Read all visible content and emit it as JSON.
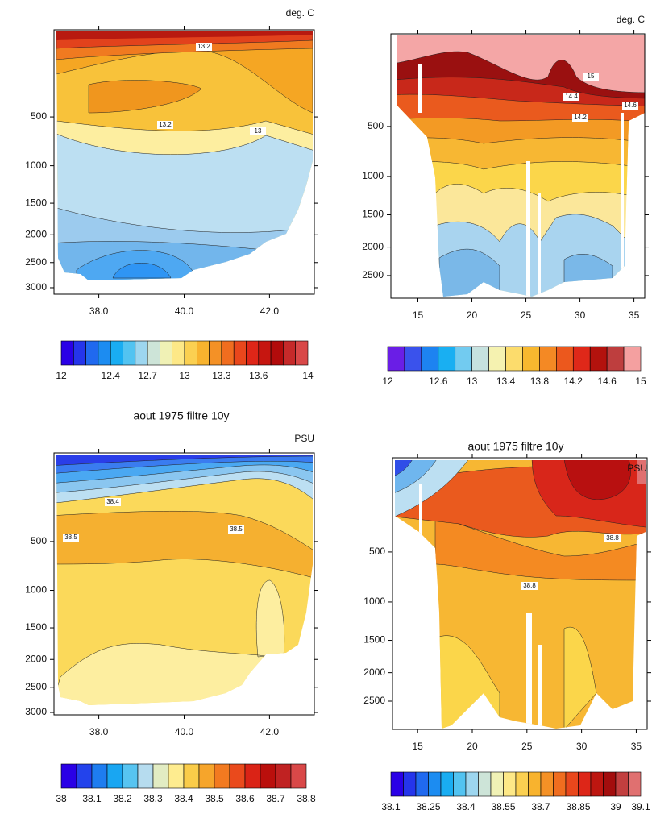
{
  "chart_data": [
    {
      "type": "contour",
      "unit": "deg. C",
      "xlim": [
        36.95,
        43.05
      ],
      "xticks": [
        {
          "value": 38,
          "label": "38.0"
        },
        {
          "value": 40,
          "label": "40.0"
        },
        {
          "value": 42,
          "label": "42.0"
        }
      ],
      "yscale": "sqrt",
      "ylim": [
        34,
        3136
      ],
      "yticks": [
        500,
        1000,
        1500,
        2000,
        2500,
        3000
      ],
      "contour_labels": [
        "13.2",
        "13.2",
        "13"
      ],
      "colorbar": {
        "levels": [
          12,
          12.1,
          12.2,
          12.3,
          12.4,
          12.5,
          12.6,
          12.7,
          12.8,
          12.9,
          13,
          13.1,
          13.2,
          13.3,
          13.4,
          13.5,
          13.6,
          13.7,
          13.8,
          13.9,
          14
        ],
        "labels": [
          12,
          12.4,
          12.7,
          13,
          13.3,
          13.6,
          14
        ],
        "colormap": [
          "#2a00e6",
          "#1f6ff0",
          "#18b4f2",
          "#b6dcef",
          "#fff6a6",
          "#f9c232",
          "#f27a20",
          "#e42a1a",
          "#b00808",
          "#d94848"
        ]
      }
    },
    {
      "type": "contour",
      "unit": "deg. C",
      "xlim": [
        12.5,
        36
      ],
      "xticks": [
        15,
        20,
        25,
        30,
        35
      ],
      "yscale": "sqrt",
      "ylim": [
        27,
        2937
      ],
      "yticks": [
        500,
        1000,
        1500,
        2000,
        2500
      ],
      "contour_labels": [
        "15",
        "14.4",
        "14.2",
        "14.6"
      ],
      "colorbar": {
        "levels": [
          12,
          12.2,
          12.4,
          12.6,
          12.8,
          13,
          13.2,
          13.4,
          13.6,
          13.8,
          14,
          14.2,
          14.4,
          14.6,
          14.8,
          15
        ],
        "labels": [
          12,
          12.6,
          13,
          13.4,
          13.8,
          14.2,
          14.6,
          15
        ],
        "colormap": [
          "#6a1ee6",
          "#1f6ff0",
          "#18b4f2",
          "#b6dcef",
          "#fff6a6",
          "#f9c232",
          "#f27a20",
          "#e42a1a",
          "#a00808",
          "#f4a0a0"
        ]
      }
    },
    {
      "type": "contour",
      "title": "aout 1975 filtre 10y",
      "unit": "PSU",
      "xlim": [
        36.95,
        43.05
      ],
      "xticks": [
        {
          "value": 38,
          "label": "38.0"
        },
        {
          "value": 40,
          "label": "40.0"
        },
        {
          "value": 42,
          "label": "42.0"
        }
      ],
      "yscale": "sqrt",
      "ylim": [
        31,
        3050
      ],
      "yticks": [
        500,
        1000,
        1500,
        2000,
        2500,
        3000
      ],
      "contour_labels": [
        "38.4",
        "38.5",
        "38.5"
      ],
      "colorbar": {
        "levels": [
          38,
          38.05,
          38.1,
          38.15,
          38.2,
          38.25,
          38.3,
          38.35,
          38.4,
          38.45,
          38.5,
          38.55,
          38.6,
          38.65,
          38.7,
          38.75,
          38.8
        ],
        "labels": [
          38,
          38.1,
          38.2,
          38.3,
          38.4,
          38.5,
          38.6,
          38.7,
          38.8
        ],
        "colormap": [
          "#2a00e6",
          "#1f6ff0",
          "#18b4f2",
          "#b6dcef",
          "#fff6a6",
          "#f9c232",
          "#f27a20",
          "#e42a1a",
          "#b00808",
          "#d94848"
        ]
      }
    },
    {
      "type": "contour",
      "title": "aout 1975 filtre 10y",
      "unit": "PSU",
      "xlim": [
        12.7,
        36
      ],
      "xticks": [
        15,
        20,
        25,
        30,
        35
      ],
      "yscale": "sqrt",
      "ylim": [
        24,
        3050
      ],
      "yticks": [
        500,
        1000,
        1500,
        2000,
        2500
      ],
      "contour_labels": [
        "38.8",
        "38.8"
      ],
      "colorbar": {
        "levels": [
          38.1,
          38.15,
          38.2,
          38.25,
          38.3,
          38.35,
          38.4,
          38.45,
          38.5,
          38.55,
          38.6,
          38.65,
          38.7,
          38.75,
          38.8,
          38.85,
          38.9,
          38.95,
          39,
          39.05,
          39.1
        ],
        "labels": [
          38.1,
          38.25,
          38.4,
          38.55,
          38.7,
          38.85,
          39,
          39.1
        ],
        "colormap": [
          "#2a00e6",
          "#1f6ff0",
          "#18b4f2",
          "#b6dcef",
          "#fff6a6",
          "#f9c232",
          "#f27a20",
          "#e42a1a",
          "#a00808",
          "#e07070"
        ]
      }
    }
  ]
}
